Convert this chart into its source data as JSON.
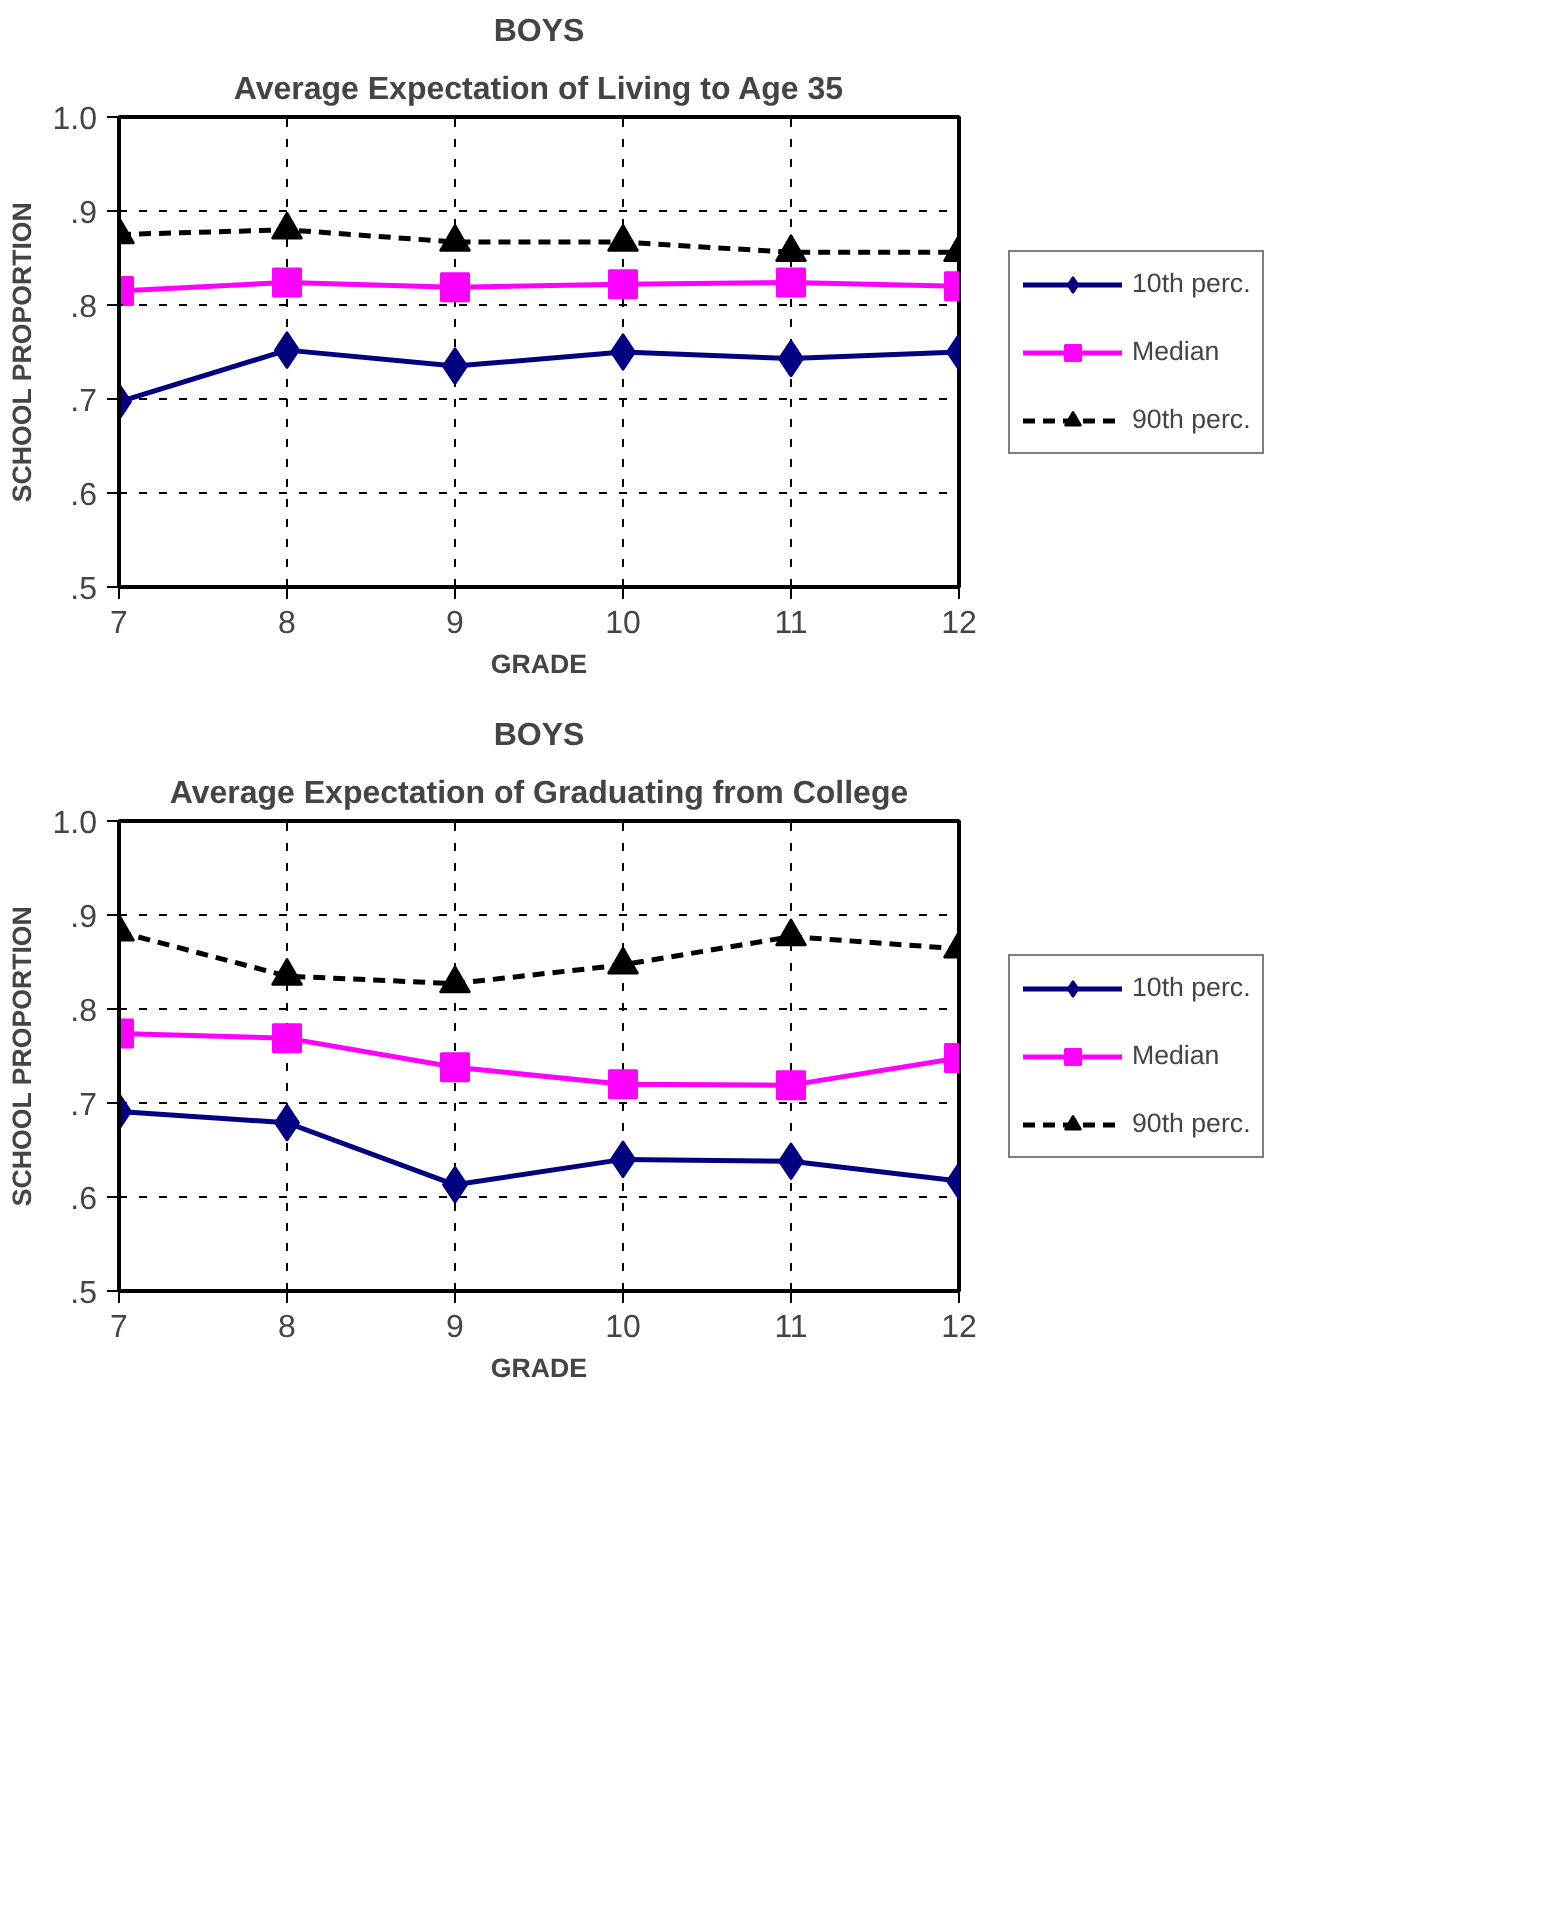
{
  "chart_data": [
    {
      "type": "line",
      "title": "BOYS",
      "subtitle": "Average Expectation of Living to Age 35",
      "xlabel": "GRADE",
      "ylabel": "SCHOOL PROPORTION",
      "x": [
        7,
        8,
        9,
        10,
        11,
        12
      ],
      "xlim": [
        7,
        12
      ],
      "xticks": [
        7,
        8,
        9,
        10,
        11,
        12
      ],
      "ylim": [
        0.5,
        1.0
      ],
      "yticks": [
        {
          "value": 0.5,
          "label": ".5"
        },
        {
          "value": 0.6,
          "label": ".6"
        },
        {
          "value": 0.7,
          "label": ".7"
        },
        {
          "value": 0.8,
          "label": ".8"
        },
        {
          "value": 0.9,
          "label": ".9"
        },
        {
          "value": 1.0,
          "label": "1.0"
        }
      ],
      "grid": true,
      "legend": "right",
      "series": [
        {
          "name": "10th perc.",
          "color": "#000080",
          "marker": "diamond",
          "line_style": "solid",
          "values": [
            0.697,
            0.752,
            0.735,
            0.75,
            0.743,
            0.75
          ]
        },
        {
          "name": "Median",
          "color": "#ff00ff",
          "marker": "square",
          "line_style": "solid",
          "values": [
            0.815,
            0.824,
            0.819,
            0.822,
            0.824,
            0.82
          ]
        },
        {
          "name": "90th perc.",
          "color": "#000000",
          "marker": "triangle",
          "line_style": "dashed",
          "values": [
            0.875,
            0.88,
            0.867,
            0.867,
            0.856,
            0.856
          ]
        }
      ]
    },
    {
      "type": "line",
      "title": "BOYS",
      "subtitle": "Average Expectation of Graduating from College",
      "xlabel": "GRADE",
      "ylabel": "SCHOOL PROPORTION",
      "x": [
        7,
        8,
        9,
        10,
        11,
        12
      ],
      "xlim": [
        7,
        12
      ],
      "xticks": [
        7,
        8,
        9,
        10,
        11,
        12
      ],
      "ylim": [
        0.5,
        1.0
      ],
      "yticks": [
        {
          "value": 0.5,
          "label": ".5"
        },
        {
          "value": 0.6,
          "label": ".6"
        },
        {
          "value": 0.7,
          "label": ".7"
        },
        {
          "value": 0.8,
          "label": ".8"
        },
        {
          "value": 0.9,
          "label": ".9"
        },
        {
          "value": 1.0,
          "label": "1.0"
        }
      ],
      "grid": true,
      "legend": "right",
      "series": [
        {
          "name": "10th perc.",
          "color": "#000080",
          "marker": "diamond",
          "line_style": "solid",
          "values": [
            0.691,
            0.679,
            0.613,
            0.64,
            0.638,
            0.617
          ]
        },
        {
          "name": "Median",
          "color": "#ff00ff",
          "marker": "square",
          "line_style": "solid",
          "values": [
            0.774,
            0.769,
            0.738,
            0.72,
            0.719,
            0.748
          ]
        },
        {
          "name": "90th perc.",
          "color": "#000000",
          "marker": "triangle",
          "line_style": "dashed",
          "values": [
            0.882,
            0.835,
            0.827,
            0.847,
            0.877,
            0.864
          ]
        }
      ]
    }
  ]
}
